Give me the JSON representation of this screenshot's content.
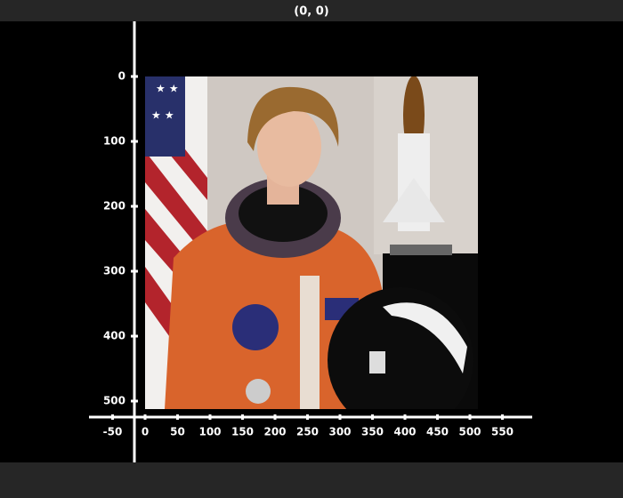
{
  "window": {
    "title": "(0, 0)"
  },
  "x_axis": {
    "ticks": [
      -50,
      0,
      50,
      100,
      150,
      200,
      250,
      300,
      350,
      400,
      450,
      500,
      550
    ]
  },
  "y_axis": {
    "ticks": [
      0,
      100,
      200,
      300,
      400,
      500
    ]
  }
}
